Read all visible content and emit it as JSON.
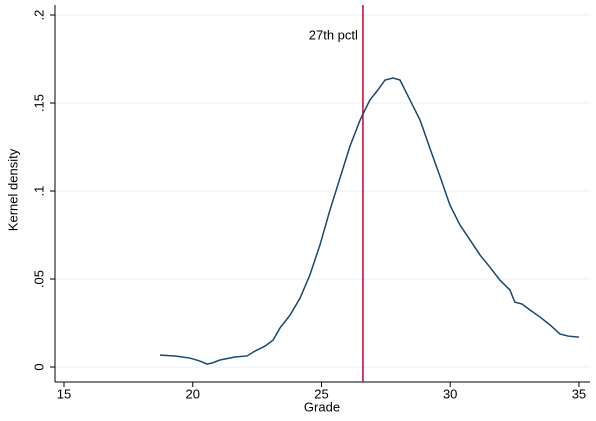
{
  "chart_data": {
    "type": "line",
    "x_label": "Grade",
    "y_label": "Kernel density",
    "x": [
      18.73,
      19.31,
      19.89,
      20.28,
      20.55,
      20.75,
      21.06,
      21.64,
      22.11,
      22.42,
      22.81,
      23.12,
      23.39,
      23.78,
      24.17,
      24.55,
      24.94,
      25.33,
      25.72,
      26.11,
      26.5,
      26.88,
      27.19,
      27.47,
      27.78,
      28.05,
      28.44,
      28.83,
      29.21,
      29.6,
      29.99,
      30.38,
      30.77,
      31.16,
      31.54,
      31.93,
      32.32,
      32.51,
      32.79,
      33.1,
      33.49,
      33.88,
      34.26,
      34.57,
      35.0
    ],
    "values": [
      0.0068,
      0.0063,
      0.0051,
      0.0034,
      0.0017,
      0.0023,
      0.004,
      0.0057,
      0.0063,
      0.0091,
      0.0119,
      0.0153,
      0.0222,
      0.0295,
      0.0392,
      0.0523,
      0.0693,
      0.0892,
      0.1074,
      0.1256,
      0.1403,
      0.1517,
      0.1574,
      0.1631,
      0.1642,
      0.1631,
      0.1517,
      0.1403,
      0.1244,
      0.1085,
      0.092,
      0.0807,
      0.0722,
      0.0636,
      0.0568,
      0.0494,
      0.0438,
      0.0369,
      0.0358,
      0.0324,
      0.0284,
      0.0239,
      0.0188,
      0.0176,
      0.017
    ],
    "color": "#1a476f",
    "xlim": [
      14.65,
      35.43
    ],
    "ylim": [
      -0.0085,
      0.2057
    ],
    "xticks": [
      15,
      20,
      25,
      30,
      35
    ],
    "yticks": [
      0,
      {
        "value": 0.05,
        "label": ".05"
      },
      {
        "value": 0.1,
        "label": ".1"
      },
      {
        "value": 0.15,
        "label": ".15"
      },
      {
        "value": 0.2,
        "label": ".2"
      }
    ],
    "grid": true,
    "annotation": {
      "text": "27th pctl",
      "x": 26.61,
      "color": "#c10534"
    }
  }
}
